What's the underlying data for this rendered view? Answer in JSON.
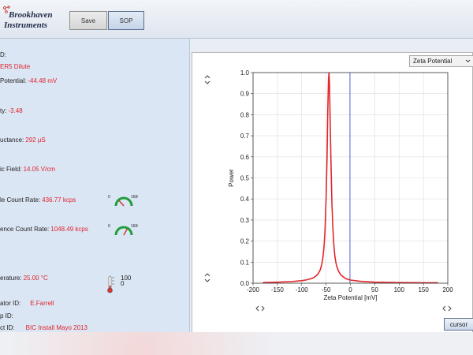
{
  "header": {
    "logo_line1": "Brookhaven",
    "logo_line2": "Instruments",
    "save_label": "Save",
    "sop_label": "SOP"
  },
  "sample": {
    "id_label": "D:",
    "name_value": "ER5 Dilute",
    "zeta_label": "Potential:",
    "zeta_value": "-44.48 mV",
    "mobility_label": "ty:",
    "mobility_value": "-3.48",
    "conductance_label": "uctance:",
    "conductance_value": "292 µS",
    "field_label": "ic Field:",
    "field_value": "14.05 V/cm",
    "sample_count_label": "le Count Rate:",
    "sample_count_value": "436.77 kcps",
    "ref_count_label": "ence Count Rate:",
    "ref_count_value": "1048.49 kcps",
    "temp_label": "erature:",
    "temp_value": "25.00 °C",
    "operator_label": "ator ID:",
    "operator_value": "E.Farrell",
    "group_label": "p ID:",
    "project_label": "ct ID:",
    "project_value": "BIC Install Mayo 2013"
  },
  "gauges": {
    "sample_count": {
      "min": "0",
      "max": "1600",
      "level": 0.27
    },
    "ref_count": {
      "min": "0",
      "max": "1600",
      "level": 0.66
    }
  },
  "thermometer": {
    "max": "100",
    "min": "0",
    "level": 0.25
  },
  "chart_selector": {
    "selected": "Zeta Potential"
  },
  "cursor_label": "cursor",
  "chart_data": {
    "type": "line",
    "xlabel": "Zeta Potential [mV]",
    "ylabel": "Power",
    "xlim": [
      -200,
      200
    ],
    "ylim": [
      0,
      1
    ],
    "x_ticks": [
      -200,
      -150,
      -100,
      -50,
      0,
      50,
      100,
      150,
      200
    ],
    "y_ticks": [
      0,
      0.1,
      0.2,
      0.3,
      0.4,
      0.5,
      0.6,
      0.7,
      0.8,
      0.9,
      1.0
    ],
    "y_tick_labels": [
      "0.0",
      "0.1",
      "0.2",
      "0.3",
      "0.4",
      "0.5",
      "0.6",
      "0.7",
      "0.8",
      "0.9",
      "1.0"
    ],
    "grid": true,
    "series": [
      {
        "color": "#e0282e",
        "x": [
          -180,
          -150,
          -120,
          -100,
          -90,
          -80,
          -75,
          -70,
          -66,
          -62,
          -60,
          -58,
          -56,
          -54,
          -52,
          -50,
          -48,
          -46.5,
          -45,
          -44,
          -43,
          -42,
          -40,
          -38,
          -36,
          -34,
          -32,
          -30,
          -28,
          -25,
          -20,
          -10,
          0,
          20,
          50,
          100,
          150,
          180
        ],
        "y": [
          0.003,
          0.005,
          0.008,
          0.012,
          0.016,
          0.022,
          0.027,
          0.036,
          0.046,
          0.063,
          0.08,
          0.1,
          0.13,
          0.18,
          0.26,
          0.4,
          0.6,
          0.82,
          0.97,
          1.0,
          0.95,
          0.82,
          0.58,
          0.38,
          0.26,
          0.18,
          0.13,
          0.1,
          0.08,
          0.06,
          0.04,
          0.022,
          0.015,
          0.009,
          0.005,
          0.003,
          0.002,
          0.002
        ]
      }
    ],
    "marker_x": -1,
    "marker_color": "#5c6ee6"
  },
  "colors": {
    "value_red": "#e0242e",
    "panel_blue": "#dbe6f4"
  }
}
